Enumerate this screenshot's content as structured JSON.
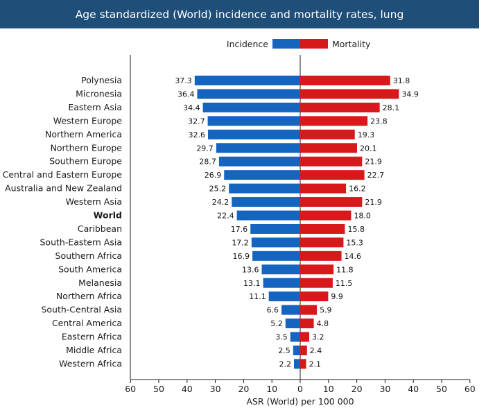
{
  "chart_data": {
    "type": "bar",
    "orientation": "horizontal-diverging",
    "title": "Age standardized (World) incidence and mortality rates, lung",
    "xlabel": "ASR (World) per 100 000",
    "xlim": [
      -60,
      60
    ],
    "x_ticks": [
      "60",
      "50",
      "40",
      "30",
      "20",
      "10",
      "0",
      "10",
      "20",
      "30",
      "40",
      "50",
      "60"
    ],
    "legend_position": "top",
    "highlight_category": "World",
    "categories": [
      "Polynesia",
      "Micronesia",
      "Eastern Asia",
      "Western Europe",
      "Northern America",
      "Northern Europe",
      "Southern Europe",
      "Central and Eastern Europe",
      "Australia and New Zealand",
      "Western Asia",
      "World",
      "Caribbean",
      "South-Eastern Asia",
      "Southern Africa",
      "South America",
      "Melanesia",
      "Northern Africa",
      "South-Central Asia",
      "Central America",
      "Eastern Africa",
      "Middle Africa",
      "Western Africa"
    ],
    "series": [
      {
        "name": "Incidence",
        "color": "#1565c0",
        "values": [
          37.3,
          36.4,
          34.4,
          32.7,
          32.6,
          29.7,
          28.7,
          26.9,
          25.2,
          24.2,
          22.4,
          17.6,
          17.2,
          16.9,
          13.6,
          13.1,
          11.1,
          6.6,
          5.2,
          3.5,
          2.5,
          2.2
        ],
        "labels": [
          "37.3",
          "36.4",
          "34.4",
          "32.7",
          "32.6",
          "29.7",
          "28.7",
          "26.9",
          "25.2",
          "24.2",
          "22.4",
          "17.6",
          "17.2",
          "16.9",
          "13.6",
          "13.1",
          "11.1",
          "6.6",
          "5.2",
          "3.5",
          "2.5",
          "2.2"
        ]
      },
      {
        "name": "Mortality",
        "color": "#d7191c",
        "values": [
          31.8,
          34.9,
          28.1,
          23.8,
          19.3,
          20.1,
          21.9,
          22.7,
          16.2,
          21.9,
          18.0,
          15.8,
          15.3,
          14.6,
          11.8,
          11.5,
          9.9,
          5.9,
          4.8,
          3.2,
          2.4,
          2.1
        ],
        "labels": [
          "31.8",
          "34.9",
          "28.1",
          "23.8",
          "19.3",
          "20.1",
          "21.9",
          "22.7",
          "16.2",
          "21.9",
          "18.0",
          "15.8",
          "15.3",
          "14.6",
          "11.8",
          "11.5",
          "9.9",
          "5.9",
          "4.8",
          "3.2",
          "2.4",
          "2.1"
        ]
      }
    ]
  }
}
